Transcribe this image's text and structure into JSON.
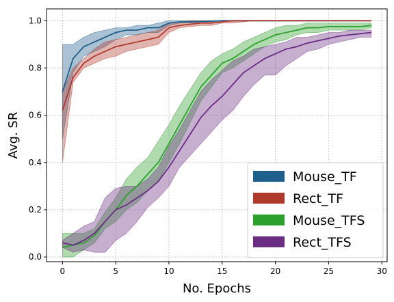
{
  "chart_data": {
    "type": "line",
    "xlabel": "No. Epochs",
    "ylabel": "Avg. SR",
    "xlim": [
      -1.5,
      30.5
    ],
    "ylim": [
      -0.02,
      1.05
    ],
    "xticks": [
      0,
      5,
      10,
      15,
      20,
      25,
      30
    ],
    "yticks": [
      0.0,
      0.2,
      0.4,
      0.6,
      0.8,
      1.0
    ],
    "grid": true,
    "legend_position": "bottom-right",
    "x": [
      0,
      1,
      2,
      3,
      4,
      5,
      6,
      7,
      8,
      9,
      10,
      11,
      12,
      13,
      14,
      15,
      16,
      17,
      18,
      19,
      20,
      21,
      22,
      23,
      24,
      25,
      26,
      27,
      28,
      29
    ],
    "series": [
      {
        "name": "Mouse_TF",
        "color": "#1f5f8b",
        "mean": [
          0.7,
          0.84,
          0.89,
          0.91,
          0.93,
          0.95,
          0.96,
          0.96,
          0.97,
          0.97,
          0.99,
          0.995,
          0.995,
          0.997,
          0.998,
          1.0,
          1.0,
          1.0,
          1.0,
          1.0,
          1.0,
          1.0,
          1.0,
          1.0,
          1.0,
          1.0,
          1.0,
          1.0,
          1.0,
          1.0
        ],
        "upper": [
          0.9,
          0.9,
          0.93,
          0.95,
          0.96,
          0.97,
          0.97,
          0.98,
          0.98,
          0.99,
          1.0,
          1.0,
          1.0,
          1.0,
          1.0,
          1.0,
          1.0,
          1.0,
          1.0,
          1.0,
          1.0,
          1.0,
          1.0,
          1.0,
          1.0,
          1.0,
          1.0,
          1.0,
          1.0,
          1.0
        ],
        "lower": [
          0.5,
          0.78,
          0.85,
          0.87,
          0.89,
          0.92,
          0.94,
          0.94,
          0.95,
          0.95,
          0.98,
          0.99,
          0.99,
          0.99,
          0.995,
          1.0,
          1.0,
          1.0,
          1.0,
          1.0,
          1.0,
          1.0,
          1.0,
          1.0,
          1.0,
          1.0,
          1.0,
          1.0,
          1.0,
          1.0
        ]
      },
      {
        "name": "Rect_TF",
        "color": "#b0392e",
        "mean": [
          0.62,
          0.76,
          0.82,
          0.85,
          0.87,
          0.89,
          0.9,
          0.91,
          0.92,
          0.93,
          0.97,
          0.98,
          0.985,
          0.99,
          0.99,
          0.995,
          1.0,
          1.0,
          1.0,
          1.0,
          1.0,
          1.0,
          1.0,
          1.0,
          1.0,
          1.0,
          1.0,
          1.0,
          1.0,
          1.0
        ],
        "upper": [
          0.7,
          0.8,
          0.84,
          0.88,
          0.91,
          0.92,
          0.93,
          0.94,
          0.95,
          0.96,
          0.99,
          0.995,
          1.0,
          1.0,
          1.0,
          1.0,
          1.0,
          1.0,
          1.0,
          1.0,
          1.0,
          1.0,
          1.0,
          1.0,
          1.0,
          1.0,
          1.0,
          1.0,
          1.0,
          1.0
        ],
        "lower": [
          0.4,
          0.74,
          0.8,
          0.82,
          0.84,
          0.85,
          0.87,
          0.88,
          0.89,
          0.9,
          0.95,
          0.97,
          0.975,
          0.98,
          0.98,
          0.99,
          0.99,
          0.995,
          1.0,
          1.0,
          1.0,
          1.0,
          1.0,
          1.0,
          1.0,
          1.0,
          1.0,
          1.0,
          1.0,
          1.0
        ]
      },
      {
        "name": "Mouse_TFS",
        "color": "#2ca02c",
        "mean": [
          0.04,
          0.05,
          0.06,
          0.09,
          0.15,
          0.2,
          0.26,
          0.3,
          0.35,
          0.4,
          0.48,
          0.56,
          0.64,
          0.72,
          0.77,
          0.82,
          0.84,
          0.87,
          0.9,
          0.92,
          0.94,
          0.95,
          0.96,
          0.97,
          0.97,
          0.975,
          0.975,
          0.975,
          0.975,
          0.98
        ],
        "upper": [
          0.1,
          0.1,
          0.1,
          0.12,
          0.19,
          0.25,
          0.33,
          0.38,
          0.42,
          0.49,
          0.56,
          0.64,
          0.71,
          0.78,
          0.83,
          0.86,
          0.88,
          0.91,
          0.93,
          0.95,
          0.97,
          0.98,
          0.98,
          0.99,
          0.99,
          0.99,
          0.99,
          0.99,
          0.99,
          0.99
        ],
        "lower": [
          0.0,
          0.0,
          0.03,
          0.06,
          0.12,
          0.15,
          0.2,
          0.23,
          0.28,
          0.32,
          0.4,
          0.48,
          0.57,
          0.66,
          0.72,
          0.78,
          0.8,
          0.83,
          0.86,
          0.89,
          0.91,
          0.92,
          0.94,
          0.95,
          0.95,
          0.96,
          0.96,
          0.96,
          0.96,
          0.97
        ]
      },
      {
        "name": "Rect_TFS",
        "color": "#6b2c84",
        "mean": [
          0.06,
          0.05,
          0.07,
          0.1,
          0.15,
          0.2,
          0.22,
          0.25,
          0.28,
          0.32,
          0.38,
          0.45,
          0.52,
          0.59,
          0.64,
          0.68,
          0.73,
          0.78,
          0.81,
          0.84,
          0.86,
          0.88,
          0.89,
          0.905,
          0.915,
          0.925,
          0.935,
          0.94,
          0.945,
          0.95
        ],
        "upper": [
          0.07,
          0.1,
          0.13,
          0.15,
          0.25,
          0.29,
          0.3,
          0.3,
          0.33,
          0.38,
          0.47,
          0.54,
          0.62,
          0.7,
          0.75,
          0.79,
          0.83,
          0.85,
          0.88,
          0.89,
          0.9,
          0.91,
          0.93,
          0.93,
          0.94,
          0.95,
          0.95,
          0.96,
          0.96,
          0.96
        ],
        "lower": [
          0.04,
          0.02,
          0.03,
          0.02,
          0.02,
          0.07,
          0.1,
          0.15,
          0.21,
          0.25,
          0.3,
          0.38,
          0.43,
          0.48,
          0.53,
          0.58,
          0.62,
          0.68,
          0.73,
          0.77,
          0.77,
          0.81,
          0.84,
          0.87,
          0.88,
          0.9,
          0.91,
          0.92,
          0.93,
          0.93
        ]
      }
    ]
  }
}
